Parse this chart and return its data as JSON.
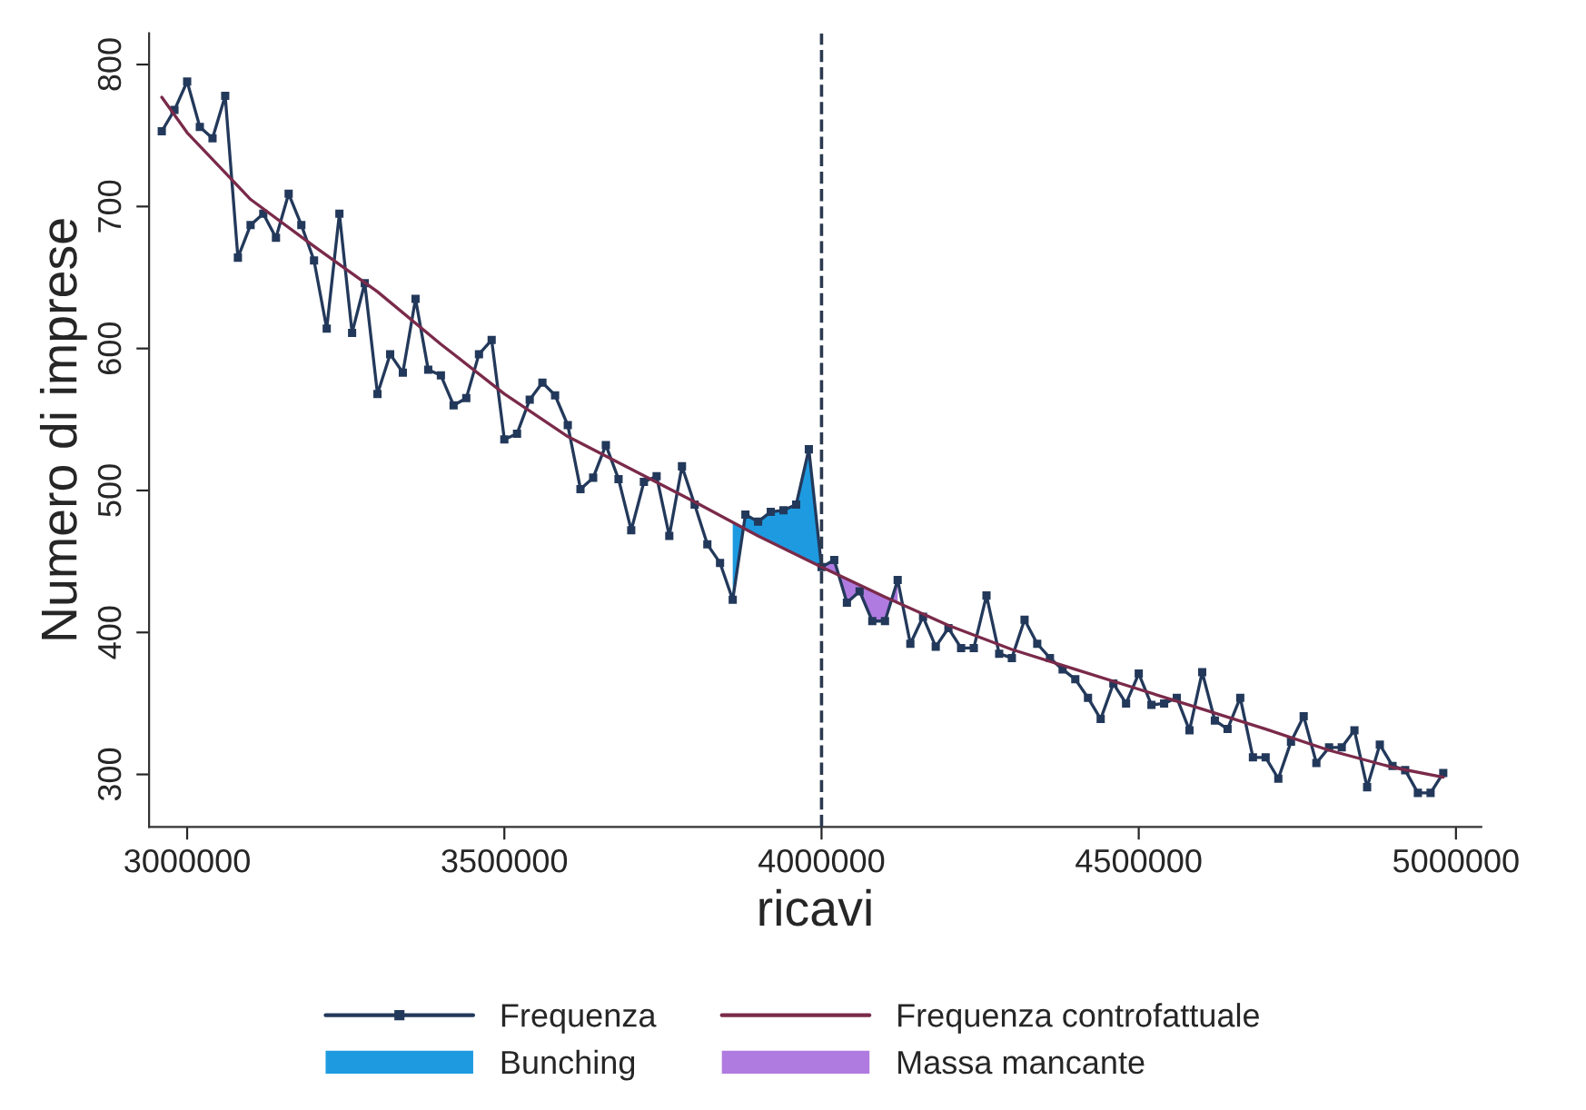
{
  "chart_data": {
    "type": "line",
    "xlabel": "ricavi",
    "ylabel": "Numero di imprese",
    "xlim": [
      2940000,
      5040000
    ],
    "ylim": [
      263,
      822
    ],
    "xticks": [
      3000000,
      3500000,
      4000000,
      4500000,
      5000000
    ],
    "yticks": [
      300,
      400,
      500,
      600,
      700,
      800
    ],
    "grid": false,
    "legend": "bottom",
    "ref_lines": [
      {
        "axis": "x",
        "value": 4000000,
        "color": "#2b3a4f",
        "line_style": "dashed"
      }
    ],
    "series": [
      {
        "name": "Bunching",
        "type": "area",
        "color": "#1e9be0",
        "x": [
          3860000,
          3880000,
          3900000,
          3920000,
          3940000,
          3960000,
          3980000,
          4000000
        ],
        "values": [
          423,
          483,
          478,
          485,
          486,
          490,
          529,
          446
        ]
      },
      {
        "name": "Massa mancante",
        "type": "area",
        "color": "#b07be0",
        "x": [
          4000000,
          4020000,
          4040000,
          4060000,
          4080000,
          4100000,
          4120000
        ],
        "values": [
          446,
          451,
          421,
          429,
          408,
          408,
          437
        ]
      },
      {
        "name": "Frequenza",
        "color": "#23395b",
        "marker": "square",
        "x": [
          2960000,
          2980000,
          3000000,
          3020000,
          3040000,
          3060000,
          3080000,
          3100000,
          3120000,
          3140000,
          3160000,
          3180000,
          3200000,
          3220000,
          3240000,
          3260000,
          3280000,
          3300000,
          3320000,
          3340000,
          3360000,
          3380000,
          3400000,
          3420000,
          3440000,
          3460000,
          3480000,
          3500000,
          3520000,
          3540000,
          3560000,
          3580000,
          3600000,
          3620000,
          3640000,
          3660000,
          3680000,
          3700000,
          3720000,
          3740000,
          3760000,
          3780000,
          3800000,
          3820000,
          3840000,
          3860000,
          3880000,
          3900000,
          3920000,
          3940000,
          3960000,
          3980000,
          4000000,
          4020000,
          4040000,
          4060000,
          4080000,
          4100000,
          4120000,
          4140000,
          4160000,
          4180000,
          4200000,
          4220000,
          4240000,
          4260000,
          4280000,
          4300000,
          4320000,
          4340000,
          4360000,
          4380000,
          4400000,
          4420000,
          4440000,
          4460000,
          4480000,
          4500000,
          4520000,
          4540000,
          4560000,
          4580000,
          4600000,
          4620000,
          4640000,
          4660000,
          4680000,
          4700000,
          4720000,
          4740000,
          4760000,
          4780000,
          4800000,
          4820000,
          4840000,
          4860000,
          4880000,
          4900000,
          4920000,
          4940000,
          4960000,
          4980000
        ],
        "values": [
          753,
          768,
          788,
          756,
          748,
          778,
          664,
          687,
          695,
          678,
          709,
          687,
          662,
          614,
          695,
          611,
          646,
          568,
          596,
          583,
          635,
          585,
          581,
          560,
          565,
          596,
          606,
          536,
          540,
          564,
          576,
          567,
          546,
          501,
          509,
          532,
          508,
          472,
          506,
          510,
          468,
          517,
          490,
          462,
          449,
          423,
          483,
          478,
          485,
          486,
          490,
          529,
          446,
          451,
          421,
          429,
          408,
          408,
          437,
          392,
          411,
          390,
          403,
          389,
          389,
          426,
          385,
          382,
          409,
          392,
          382,
          374,
          367,
          354,
          339,
          364,
          350,
          371,
          349,
          350,
          354,
          331,
          372,
          338,
          332,
          354,
          312,
          312,
          297,
          323,
          341,
          308,
          319,
          319,
          331,
          291,
          321,
          306,
          303,
          287,
          287,
          301
        ]
      },
      {
        "name": "Frequenza controfattuale",
        "color": "#7a2a4a",
        "marker": "none",
        "x": [
          2960000,
          3000000,
          3100000,
          3200000,
          3300000,
          3400000,
          3500000,
          3600000,
          3700000,
          3800000,
          3900000,
          4000000,
          4100000,
          4200000,
          4300000,
          4400000,
          4500000,
          4600000,
          4700000,
          4800000,
          4900000,
          4980000
        ],
        "values": [
          777,
          752,
          705,
          672,
          640,
          603,
          568,
          538,
          515,
          492,
          468,
          446,
          425,
          405,
          388,
          374,
          360,
          346,
          332,
          317,
          305,
          298
        ]
      }
    ]
  }
}
